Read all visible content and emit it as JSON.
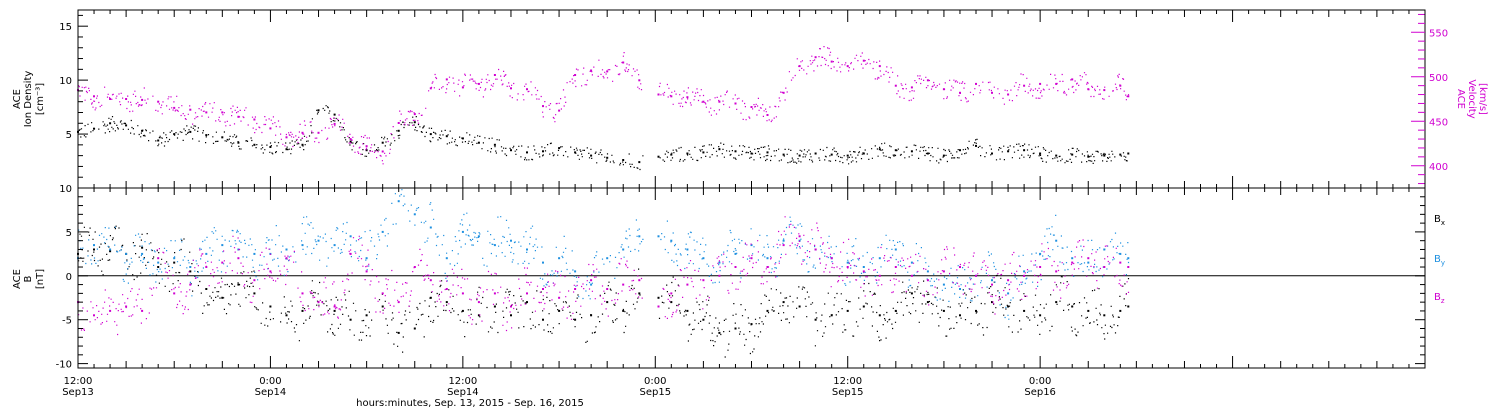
{
  "xaxis": {
    "title": "hours:minutes, Sep. 13, 2015 - Sep. 16, 2015",
    "range_hours": [
      0,
      84
    ],
    "ticks": [
      {
        "t": 0,
        "time": "12:00",
        "day": "Sep13"
      },
      {
        "t": 12,
        "time": "0:00",
        "day": "Sep14"
      },
      {
        "t": 24,
        "time": "12:00",
        "day": "Sep14"
      },
      {
        "t": 36,
        "time": "0:00",
        "day": "Sep15"
      },
      {
        "t": 48,
        "time": "12:00",
        "day": "Sep15"
      },
      {
        "t": 60,
        "time": "0:00",
        "day": "Sep16"
      }
    ]
  },
  "chart_data": [
    {
      "type": "scatter",
      "panel": "plasma",
      "ylabel_left": [
        "ACE",
        "Ion Density",
        "[cm⁻³]"
      ],
      "ylabel_right": [
        "ACE",
        "Velocity",
        "[km/s]"
      ],
      "ylim_left": [
        0,
        16.5
      ],
      "ylim_right": [
        375,
        575
      ],
      "yticks_left": [
        "5",
        "10",
        "15"
      ],
      "yticks_right": [
        "400",
        "450",
        "500",
        "550"
      ],
      "data_gap_hours": [
        35.2,
        36.2
      ],
      "data_end_hours": 65.5,
      "series": [
        {
          "name": "Ion Density",
          "axis": "left",
          "color": "#000000",
          "x": [
            0,
            1,
            2,
            3,
            4,
            5,
            6,
            7,
            8,
            9,
            10,
            11,
            12,
            13,
            14,
            15,
            16,
            17,
            18,
            19,
            20,
            21,
            22,
            23,
            24,
            25,
            26,
            27,
            28,
            29,
            30,
            31,
            32,
            33,
            34,
            35,
            36.2,
            37,
            38,
            39,
            40,
            41,
            42,
            43,
            44,
            45,
            46,
            47,
            48,
            49,
            50,
            51,
            52,
            53,
            54,
            55,
            56,
            57,
            58,
            59,
            60,
            61,
            62,
            63,
            64,
            65,
            65.5
          ],
          "y": [
            5.2,
            5.5,
            6.0,
            5.8,
            5.3,
            4.4,
            5.0,
            5.2,
            4.9,
            4.7,
            4.2,
            4.0,
            3.8,
            3.6,
            4.0,
            7.2,
            6.8,
            4.3,
            3.5,
            4.2,
            5.3,
            6.1,
            5.0,
            4.8,
            4.6,
            4.2,
            4.0,
            3.5,
            3.3,
            3.4,
            3.7,
            3.3,
            3.0,
            2.8,
            2.6,
            2.4,
            2.9,
            3.1,
            3.2,
            3.3,
            3.6,
            3.4,
            3.2,
            3.3,
            3.1,
            3.0,
            3.2,
            3.1,
            3.0,
            3.2,
            3.6,
            3.5,
            3.4,
            3.2,
            3.0,
            3.5,
            3.9,
            3.2,
            3.4,
            3.5,
            3.2,
            3.0,
            3.1,
            2.9,
            3.0,
            3.1,
            3.2
          ]
        },
        {
          "name": "Velocity",
          "axis": "right",
          "color": "#d000d0",
          "x": [
            0,
            1,
            2,
            3,
            4,
            5,
            6,
            7,
            8,
            9,
            10,
            11,
            12,
            13,
            14,
            15,
            16,
            17,
            18,
            19,
            20,
            21,
            22,
            23,
            24,
            25,
            26,
            27,
            28,
            29,
            30,
            31,
            32,
            33,
            34,
            35,
            36.2,
            37,
            38,
            39,
            40,
            41,
            42,
            43,
            44,
            45,
            46,
            47,
            48,
            49,
            50,
            51,
            52,
            53,
            54,
            55,
            56,
            57,
            58,
            59,
            60,
            61,
            62,
            63,
            64,
            65,
            65.5
          ],
          "y": [
            485,
            478,
            475,
            475,
            474,
            472,
            465,
            463,
            460,
            460,
            455,
            452,
            442,
            432,
            437,
            437,
            447,
            430,
            422,
            416,
            448,
            458,
            487,
            497,
            488,
            492,
            502,
            487,
            486,
            467,
            462,
            502,
            507,
            506,
            516,
            496,
            480,
            478,
            477,
            472,
            472,
            470,
            466,
            457,
            482,
            512,
            522,
            517,
            512,
            518,
            512,
            490,
            488,
            496,
            486,
            482,
            492,
            482,
            480,
            490,
            492,
            492,
            497,
            486,
            485,
            490,
            478
          ]
        }
      ]
    },
    {
      "type": "scatter",
      "panel": "magnetic-field",
      "ylabel_left": [
        "ACE",
        "B",
        "[nT]"
      ],
      "ylim": [
        -10.5,
        10
      ],
      "yticks": [
        "10",
        "5",
        "0",
        "-5",
        "-10"
      ],
      "zero_line": true,
      "data_gap_hours": [
        35.2,
        36.2
      ],
      "data_end_hours": 65.5,
      "legend_position": "right",
      "series": [
        {
          "name": "Bx",
          "label_main": "B",
          "label_sub": "x",
          "color": "#000000",
          "x": [
            0,
            1,
            2,
            3,
            4,
            5,
            6,
            7,
            8,
            9,
            10,
            11,
            12,
            13,
            14,
            15,
            16,
            17,
            18,
            19,
            20,
            21,
            22,
            23,
            24,
            25,
            26,
            27,
            28,
            29,
            30,
            31,
            32,
            33,
            34,
            35,
            36.2,
            37,
            38,
            39,
            40,
            41,
            42,
            43,
            44,
            45,
            46,
            47,
            48,
            49,
            50,
            51,
            52,
            53,
            54,
            55,
            56,
            57,
            58,
            59,
            60,
            61,
            62,
            63,
            64,
            65,
            65.5
          ],
          "y": [
            2.5,
            3.0,
            2.8,
            2.5,
            3.2,
            1.0,
            1.5,
            0.5,
            -1.5,
            -2.5,
            -1.0,
            -2.0,
            -3.5,
            -4.5,
            -4.0,
            -3.0,
            -4.0,
            -5.0,
            -4.5,
            -3.5,
            -6.5,
            -6.0,
            -2.5,
            -3.0,
            -4.0,
            -4.5,
            -3.5,
            -4.5,
            -3.0,
            -5.0,
            -4.0,
            -5.0,
            -4.5,
            -3.0,
            -4.0,
            -2.0,
            -2.5,
            -3.0,
            -4.0,
            -5.0,
            -6.5,
            -6.0,
            -5.5,
            -4.0,
            -3.0,
            -3.5,
            -5.0,
            -4.5,
            -4.0,
            -3.5,
            -4.5,
            -4.0,
            -2.0,
            -3.0,
            -4.0,
            -4.5,
            -4.0,
            -3.0,
            -3.5,
            -4.0,
            -4.5,
            -3.0,
            -3.5,
            -4.0,
            -4.5,
            -4.0,
            -3.5
          ]
        },
        {
          "name": "By",
          "label_main": "B",
          "label_sub": "y",
          "color": "#1e90e0",
          "x": [
            0,
            1,
            2,
            3,
            4,
            5,
            6,
            7,
            8,
            9,
            10,
            11,
            12,
            13,
            14,
            15,
            16,
            17,
            18,
            19,
            20,
            21,
            22,
            23,
            24,
            25,
            26,
            27,
            28,
            29,
            30,
            31,
            32,
            33,
            34,
            35,
            36.2,
            37,
            38,
            39,
            40,
            41,
            42,
            43,
            44,
            45,
            46,
            47,
            48,
            49,
            50,
            51,
            52,
            53,
            54,
            55,
            56,
            57,
            58,
            59,
            60,
            61,
            62,
            63,
            64,
            65,
            65.5
          ],
          "y": [
            2.0,
            3.5,
            3.0,
            2.5,
            2.5,
            1.5,
            2.0,
            1.0,
            2.5,
            3.5,
            3.0,
            2.5,
            2.5,
            3.0,
            3.5,
            4.0,
            3.5,
            4.5,
            2.0,
            5.0,
            8.5,
            7.0,
            5.5,
            2.0,
            5.0,
            4.5,
            3.5,
            4.0,
            3.0,
            1.5,
            2.0,
            0.5,
            -1.0,
            2.0,
            3.0,
            4.5,
            4.5,
            4.0,
            3.0,
            2.0,
            1.5,
            2.5,
            3.5,
            2.0,
            4.0,
            4.0,
            3.0,
            2.0,
            1.5,
            1.0,
            2.0,
            3.0,
            1.5,
            0.5,
            -1.0,
            -1.5,
            0.0,
            -0.5,
            -2.0,
            0.5,
            2.5,
            4.0,
            2.0,
            1.5,
            3.0,
            2.5,
            2.0
          ]
        },
        {
          "name": "Bz",
          "label_main": "B",
          "label_sub": "z",
          "color": "#d000d0",
          "x": [
            0,
            1,
            2,
            3,
            4,
            5,
            6,
            7,
            8,
            9,
            10,
            11,
            12,
            13,
            14,
            15,
            16,
            17,
            18,
            19,
            20,
            21,
            22,
            23,
            24,
            25,
            26,
            27,
            28,
            29,
            30,
            31,
            32,
            33,
            34,
            35,
            36.2,
            37,
            38,
            39,
            40,
            41,
            42,
            43,
            44,
            45,
            46,
            47,
            48,
            49,
            50,
            51,
            52,
            53,
            54,
            55,
            56,
            57,
            58,
            59,
            60,
            61,
            62,
            63,
            64,
            65,
            65.5
          ],
          "y": [
            -3.0,
            -4.5,
            -4.0,
            -3.5,
            -4.0,
            2.0,
            -2.0,
            -1.0,
            1.0,
            1.5,
            2.0,
            -0.5,
            0.5,
            2.0,
            -2.0,
            -3.0,
            -3.5,
            2.5,
            0.5,
            -2.0,
            -3.0,
            1.0,
            -0.5,
            -1.5,
            -2.0,
            -3.0,
            -2.0,
            -3.5,
            -2.0,
            -1.5,
            -2.5,
            -1.5,
            -0.5,
            -1.5,
            -1.0,
            -0.5,
            -3.5,
            -2.0,
            -1.0,
            -0.5,
            0.0,
            1.0,
            2.0,
            1.0,
            3.5,
            4.5,
            3.0,
            2.0,
            1.0,
            0.5,
            0.0,
            1.0,
            0.0,
            -0.5,
            0.5,
            1.0,
            0.0,
            -1.0,
            -0.5,
            0.0,
            1.0,
            0.5,
            1.5,
            2.0,
            1.0,
            1.5,
            1.0
          ]
        }
      ]
    }
  ]
}
